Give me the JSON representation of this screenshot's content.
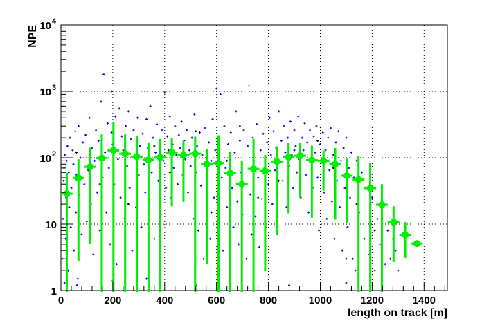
{
  "chart_data": {
    "type": "scatter",
    "title": "",
    "xlabel": "length on track [m]",
    "ylabel": "NPE",
    "xlim": [
      0,
      1490
    ],
    "ylim": [
      1,
      10000
    ],
    "yscale": "log",
    "grid": true,
    "x_ticks": [
      "0",
      "200",
      "400",
      "600",
      "800",
      "1000",
      "1200",
      "1400"
    ],
    "x_tick_values": [
      0,
      200,
      400,
      600,
      800,
      1000,
      1200,
      1400
    ],
    "y_ticks": [
      {
        "value": 1,
        "base": "1",
        "exp": ""
      },
      {
        "value": 10,
        "base": "10",
        "exp": ""
      },
      {
        "value": 100,
        "base": "10",
        "exp": "2"
      },
      {
        "value": 1000,
        "base": "10",
        "exp": "3"
      },
      {
        "value": 10000,
        "base": "10",
        "exp": "4"
      }
    ],
    "colors": {
      "scatter": "#0000ff",
      "scatter_other": "#000000",
      "profile": "#00ee00"
    },
    "profile": {
      "bin_width": 45,
      "x": [
        22.5,
        67.5,
        112.5,
        157.5,
        202.5,
        247.5,
        292.5,
        337.5,
        382.5,
        427.5,
        472.5,
        517.5,
        562.5,
        607.5,
        652.5,
        697.5,
        742.5,
        787.5,
        832.5,
        877.5,
        922.5,
        967.5,
        1012.5,
        1057.5,
        1102.5,
        1147.5,
        1192.5,
        1237.5,
        1282.5,
        1327.5,
        1372.5
      ],
      "y": [
        28.7,
        49.5,
        73,
        99,
        129,
        115,
        104,
        93,
        101,
        120,
        109,
        115,
        80,
        83,
        58.5,
        40,
        68,
        63,
        88,
        102,
        107,
        92,
        90,
        80,
        53.6,
        47,
        34.8,
        19.6,
        10.7,
        6.9,
        5.1
      ],
      "y_low": [
        1,
        2.8,
        5.1,
        1,
        1,
        1,
        1,
        1,
        1,
        18.5,
        21.6,
        1,
        2.5,
        1,
        1,
        1,
        1,
        1.96,
        6.8,
        14.5,
        25,
        12.5,
        32,
        11.7,
        10.4,
        1,
        1,
        1,
        2.7,
        3.1,
        5.1
      ],
      "y_high": [
        59,
        95,
        142,
        224,
        340,
        229,
        210,
        170,
        192,
        198,
        178,
        208,
        137,
        218,
        122,
        91,
        192,
        110,
        149,
        170,
        170,
        152,
        128,
        140,
        97,
        107,
        83,
        40,
        18.6,
        10.7,
        5.1
      ]
    },
    "scatter": [
      [
        5,
        3
      ],
      [
        8,
        12
      ],
      [
        10,
        45
      ],
      [
        12,
        70
      ],
      [
        15,
        110
      ],
      [
        18,
        6
      ],
      [
        20,
        25
      ],
      [
        22,
        90
      ],
      [
        25,
        150
      ],
      [
        28,
        2
      ],
      [
        30,
        60
      ],
      [
        32,
        18
      ],
      [
        35,
        200
      ],
      [
        38,
        9
      ],
      [
        40,
        35
      ],
      [
        45,
        130
      ],
      [
        48,
        80
      ],
      [
        50,
        4
      ],
      [
        55,
        250
      ],
      [
        58,
        15
      ],
      [
        60,
        55
      ],
      [
        65,
        1.5
      ],
      [
        68,
        300
      ],
      [
        70,
        28
      ],
      [
        75,
        100
      ],
      [
        80,
        7
      ],
      [
        85,
        170
      ],
      [
        90,
        40
      ],
      [
        95,
        220
      ],
      [
        100,
        11
      ],
      [
        105,
        65
      ],
      [
        110,
        400
      ],
      [
        115,
        20
      ],
      [
        120,
        140
      ],
      [
        125,
        3.5
      ],
      [
        130,
        90
      ],
      [
        135,
        260
      ],
      [
        140,
        30
      ],
      [
        145,
        180
      ],
      [
        150,
        8
      ],
      [
        155,
        700
      ],
      [
        160,
        50
      ],
      [
        165,
        1800
      ],
      [
        170,
        120
      ],
      [
        175,
        15
      ],
      [
        180,
        330
      ],
      [
        185,
        70
      ],
      [
        190,
        5
      ],
      [
        195,
        240
      ],
      [
        200,
        160
      ],
      [
        205,
        40
      ],
      [
        210,
        420
      ],
      [
        215,
        2.5
      ],
      [
        220,
        95
      ],
      [
        225,
        550
      ],
      [
        230,
        25
      ],
      [
        235,
        210
      ],
      [
        240,
        130
      ],
      [
        245,
        12
      ],
      [
        250,
        300
      ],
      [
        255,
        75
      ],
      [
        260,
        500
      ],
      [
        265,
        35
      ],
      [
        270,
        190
      ],
      [
        275,
        4
      ],
      [
        280,
        260
      ],
      [
        285,
        110
      ],
      [
        290,
        18
      ],
      [
        295,
        400
      ],
      [
        300,
        55
      ],
      [
        305,
        150
      ],
      [
        310,
        9
      ],
      [
        315,
        230
      ],
      [
        320,
        80
      ],
      [
        325,
        30
      ],
      [
        330,
        380
      ],
      [
        335,
        140
      ],
      [
        340,
        22
      ],
      [
        345,
        600
      ],
      [
        350,
        60
      ],
      [
        355,
        200
      ],
      [
        360,
        6
      ],
      [
        365,
        120
      ],
      [
        370,
        320
      ],
      [
        375,
        45
      ],
      [
        380,
        170
      ],
      [
        385,
        14
      ],
      [
        390,
        260
      ],
      [
        395,
        90
      ],
      [
        400,
        950
      ],
      [
        405,
        35
      ],
      [
        410,
        210
      ],
      [
        415,
        130
      ],
      [
        420,
        420
      ],
      [
        425,
        25
      ],
      [
        430,
        160
      ],
      [
        435,
        70
      ],
      [
        440,
        300
      ],
      [
        445,
        110
      ],
      [
        450,
        40
      ],
      [
        455,
        220
      ],
      [
        460,
        140
      ],
      [
        465,
        350
      ],
      [
        470,
        55
      ],
      [
        475,
        180
      ],
      [
        480,
        95
      ],
      [
        485,
        260
      ],
      [
        490,
        30
      ],
      [
        495,
        130
      ],
      [
        500,
        75
      ],
      [
        505,
        200
      ],
      [
        510,
        12
      ],
      [
        515,
        450
      ],
      [
        520,
        60
      ],
      [
        525,
        150
      ],
      [
        530,
        8
      ],
      [
        535,
        240
      ],
      [
        540,
        38
      ],
      [
        545,
        110
      ],
      [
        550,
        3
      ],
      [
        555,
        280
      ],
      [
        560,
        45
      ],
      [
        565,
        16
      ],
      [
        570,
        170
      ],
      [
        575,
        6
      ],
      [
        580,
        90
      ],
      [
        585,
        380
      ],
      [
        590,
        25
      ],
      [
        595,
        130
      ],
      [
        600,
        1100
      ],
      [
        605,
        11
      ],
      [
        610,
        200
      ],
      [
        615,
        900
      ],
      [
        620,
        50
      ],
      [
        625,
        4
      ],
      [
        630,
        300
      ],
      [
        635,
        70
      ],
      [
        640,
        18
      ],
      [
        645,
        160
      ],
      [
        650,
        2
      ],
      [
        655,
        240
      ],
      [
        660,
        35
      ],
      [
        665,
        9
      ],
      [
        670,
        120
      ],
      [
        675,
        500
      ],
      [
        680,
        22
      ],
      [
        685,
        5
      ],
      [
        690,
        180
      ],
      [
        695,
        60
      ],
      [
        700,
        14
      ],
      [
        705,
        260
      ],
      [
        710,
        40
      ],
      [
        715,
        3
      ],
      [
        720,
        150
      ],
      [
        725,
        1200
      ],
      [
        730,
        28
      ],
      [
        735,
        7
      ],
      [
        740,
        200
      ],
      [
        745,
        90
      ],
      [
        750,
        13
      ],
      [
        755,
        320
      ],
      [
        760,
        50
      ],
      [
        765,
        4.5
      ],
      [
        770,
        130
      ],
      [
        775,
        24
      ],
      [
        780,
        230
      ],
      [
        785,
        70
      ],
      [
        790,
        9
      ],
      [
        795,
        170
      ],
      [
        800,
        40
      ],
      [
        805,
        400
      ],
      [
        810,
        110
      ],
      [
        815,
        20
      ],
      [
        820,
        250
      ],
      [
        825,
        65
      ],
      [
        830,
        140
      ],
      [
        835,
        30
      ],
      [
        840,
        500
      ],
      [
        845,
        85
      ],
      [
        850,
        180
      ],
      [
        855,
        45
      ],
      [
        860,
        300
      ],
      [
        865,
        120
      ],
      [
        870,
        18
      ],
      [
        875,
        200
      ],
      [
        880,
        75
      ],
      [
        885,
        350
      ],
      [
        890,
        110
      ],
      [
        895,
        35
      ],
      [
        900,
        260
      ],
      [
        905,
        150
      ],
      [
        910,
        60
      ],
      [
        915,
        420
      ],
      [
        920,
        95
      ],
      [
        925,
        25
      ],
      [
        930,
        200
      ],
      [
        935,
        130
      ],
      [
        940,
        330
      ],
      [
        945,
        55
      ],
      [
        950,
        170
      ],
      [
        955,
        15
      ],
      [
        960,
        260
      ],
      [
        965,
        85
      ],
      [
        970,
        35
      ],
      [
        975,
        210
      ],
      [
        980,
        120
      ],
      [
        985,
        300
      ],
      [
        990,
        50
      ],
      [
        995,
        8
      ],
      [
        1000,
        160
      ],
      [
        1005,
        90
      ],
      [
        1010,
        240
      ],
      [
        1015,
        30
      ],
      [
        1020,
        130
      ],
      [
        1025,
        12
      ],
      [
        1030,
        200
      ],
      [
        1035,
        65
      ],
      [
        1040,
        280
      ],
      [
        1045,
        22
      ],
      [
        1050,
        110
      ],
      [
        1055,
        6
      ],
      [
        1060,
        170
      ],
      [
        1065,
        45
      ],
      [
        1070,
        250
      ],
      [
        1075,
        18
      ],
      [
        1080,
        90
      ],
      [
        1085,
        4
      ],
      [
        1090,
        140
      ],
      [
        1095,
        35
      ],
      [
        1100,
        200
      ],
      [
        1105,
        9
      ],
      [
        1110,
        70
      ],
      [
        1115,
        25
      ],
      [
        1120,
        120
      ],
      [
        1125,
        3
      ],
      [
        1130,
        50
      ],
      [
        1135,
        2
      ],
      [
        1140,
        90
      ],
      [
        1150,
        15
      ],
      [
        1160,
        60
      ],
      [
        1170,
        6
      ],
      [
        1180,
        35
      ],
      [
        1190,
        3.5
      ],
      [
        1200,
        25
      ],
      [
        1210,
        2
      ],
      [
        1220,
        12
      ],
      [
        1230,
        5
      ],
      [
        1240,
        20
      ],
      [
        1250,
        2.5
      ],
      [
        1260,
        8
      ],
      [
        1270,
        3
      ],
      [
        1280,
        6
      ],
      [
        1290,
        4
      ],
      [
        1300,
        2
      ],
      [
        14,
        1.3
      ],
      [
        62,
        1.2
      ],
      [
        200,
        1.4
      ],
      [
        330,
        1.5
      ],
      [
        520,
        1.2
      ],
      [
        610,
        1.1
      ],
      [
        880,
        1.2
      ],
      [
        1100,
        1.3
      ]
    ],
    "scatter_other": [
      [
        20,
        8
      ],
      [
        60,
        120
      ],
      [
        150,
        40
      ],
      [
        195,
        1000
      ],
      [
        260,
        20
      ],
      [
        360,
        150
      ],
      [
        420,
        60
      ],
      [
        520,
        250
      ],
      [
        580,
        15
      ],
      [
        640,
        90
      ],
      [
        690,
        300
      ],
      [
        760,
        25
      ],
      [
        840,
        45
      ],
      [
        900,
        130
      ],
      [
        990,
        180
      ],
      [
        1050,
        70
      ],
      [
        1100,
        3
      ],
      [
        1140,
        20
      ],
      [
        1210,
        8
      ]
    ]
  }
}
